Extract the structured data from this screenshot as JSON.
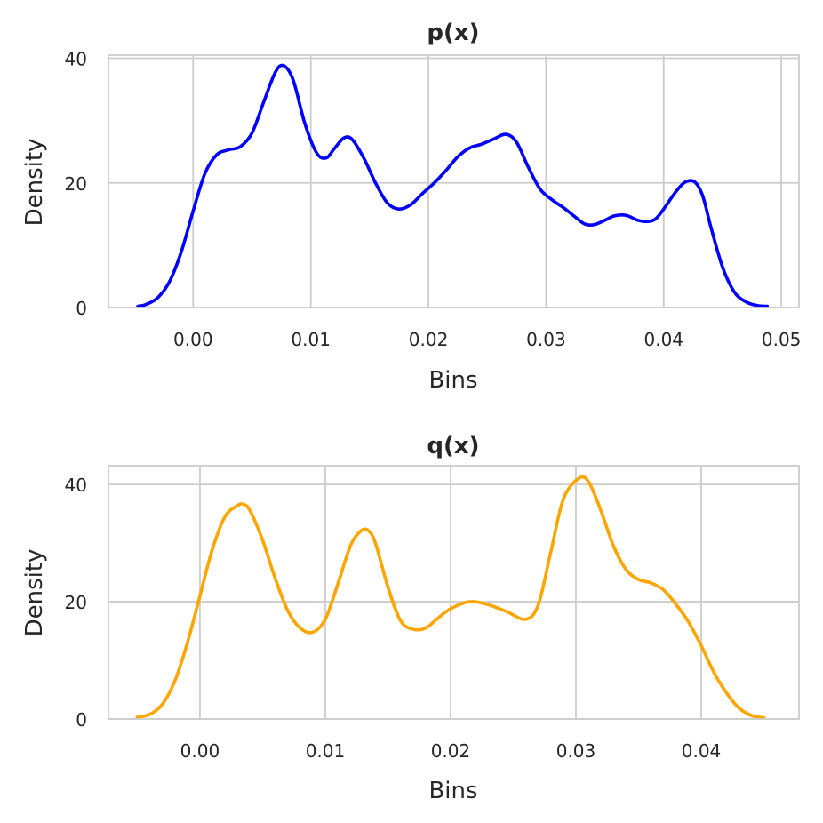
{
  "figure_bg": "#ffffff",
  "grid_color": "#cccccc",
  "text_color": "#262626",
  "chart_data": [
    {
      "type": "line",
      "title": "p(x)",
      "xlabel": "Bins",
      "ylabel": "Density",
      "xlim": [
        -0.0072,
        0.0515
      ],
      "ylim": [
        0,
        40.5
      ],
      "xticks": [
        0.0,
        0.01,
        0.02,
        0.03,
        0.04,
        0.05
      ],
      "xtick_labels": [
        "0.00",
        "0.01",
        "0.02",
        "0.03",
        "0.04",
        "0.05"
      ],
      "yticks": [
        0,
        20,
        40
      ],
      "ytick_labels": [
        "0",
        "20",
        "40"
      ],
      "grid": true,
      "series": [
        {
          "color": "#0000ff",
          "x": [
            -0.0047,
            -0.004,
            -0.003,
            -0.002,
            -0.001,
            0.0,
            0.001,
            0.002,
            0.003,
            0.004,
            0.005,
            0.006,
            0.007,
            0.0077,
            0.0085,
            0.0095,
            0.0105,
            0.0113,
            0.012,
            0.0128,
            0.0135,
            0.0145,
            0.0155,
            0.0165,
            0.0175,
            0.0185,
            0.0195,
            0.0205,
            0.0215,
            0.0225,
            0.0235,
            0.0245,
            0.0255,
            0.0266,
            0.0275,
            0.0285,
            0.0295,
            0.0305,
            0.0315,
            0.0325,
            0.0333,
            0.0341,
            0.035,
            0.0358,
            0.0368,
            0.0378,
            0.0386,
            0.0393,
            0.04,
            0.041,
            0.0418,
            0.0426,
            0.0433,
            0.044,
            0.045,
            0.046,
            0.047,
            0.048,
            0.0488
          ],
          "y": [
            0.2,
            0.5,
            1.6,
            4.2,
            9.0,
            15.5,
            21.5,
            24.5,
            25.3,
            25.8,
            28.0,
            33.0,
            37.8,
            38.8,
            36.5,
            29.5,
            24.8,
            24.0,
            25.5,
            27.2,
            27.0,
            24.0,
            20.0,
            16.8,
            15.8,
            16.5,
            18.3,
            20.0,
            22.0,
            24.2,
            25.6,
            26.2,
            27.0,
            27.8,
            26.5,
            22.5,
            19.0,
            17.3,
            16.0,
            14.5,
            13.4,
            13.3,
            14.0,
            14.7,
            14.8,
            14.0,
            13.8,
            14.2,
            15.8,
            18.5,
            20.1,
            20.2,
            18.0,
            13.0,
            6.5,
            2.5,
            0.9,
            0.3,
            0.2
          ]
        }
      ]
    },
    {
      "type": "line",
      "title": "q(x)",
      "xlabel": "Bins",
      "ylabel": "Density",
      "xlim": [
        -0.0073,
        0.0478
      ],
      "ylim": [
        0,
        43.2
      ],
      "xticks": [
        0.0,
        0.01,
        0.02,
        0.03,
        0.04
      ],
      "xtick_labels": [
        "0.00",
        "0.01",
        "0.02",
        "0.03",
        "0.04"
      ],
      "yticks": [
        0,
        20,
        40
      ],
      "ytick_labels": [
        "0",
        "20",
        "40"
      ],
      "grid": true,
      "series": [
        {
          "color": "#ffa500",
          "x": [
            -0.005,
            -0.004,
            -0.003,
            -0.002,
            -0.001,
            0.0,
            0.001,
            0.002,
            0.003,
            0.0035,
            0.004,
            0.005,
            0.006,
            0.007,
            0.008,
            0.009,
            0.01,
            0.011,
            0.012,
            0.0128,
            0.0134,
            0.014,
            0.015,
            0.016,
            0.017,
            0.018,
            0.019,
            0.02,
            0.0215,
            0.023,
            0.0245,
            0.026,
            0.027,
            0.028,
            0.029,
            0.0302,
            0.031,
            0.032,
            0.033,
            0.034,
            0.035,
            0.036,
            0.037,
            0.038,
            0.039,
            0.04,
            0.041,
            0.042,
            0.043,
            0.044,
            0.045
          ],
          "y": [
            0.3,
            0.8,
            2.5,
            6.5,
            13.0,
            21.0,
            29.0,
            34.5,
            36.4,
            36.6,
            35.5,
            30.5,
            24.0,
            18.5,
            15.5,
            14.8,
            17.0,
            23.0,
            29.5,
            32.0,
            32.2,
            30.0,
            22.5,
            16.8,
            15.3,
            15.5,
            17.2,
            18.8,
            20.0,
            19.5,
            18.3,
            17.0,
            19.5,
            28.5,
            37.5,
            41.0,
            40.5,
            35.5,
            29.5,
            25.5,
            23.8,
            23.2,
            22.0,
            19.5,
            16.5,
            12.5,
            8.0,
            4.5,
            1.9,
            0.6,
            0.2
          ]
        }
      ]
    }
  ]
}
